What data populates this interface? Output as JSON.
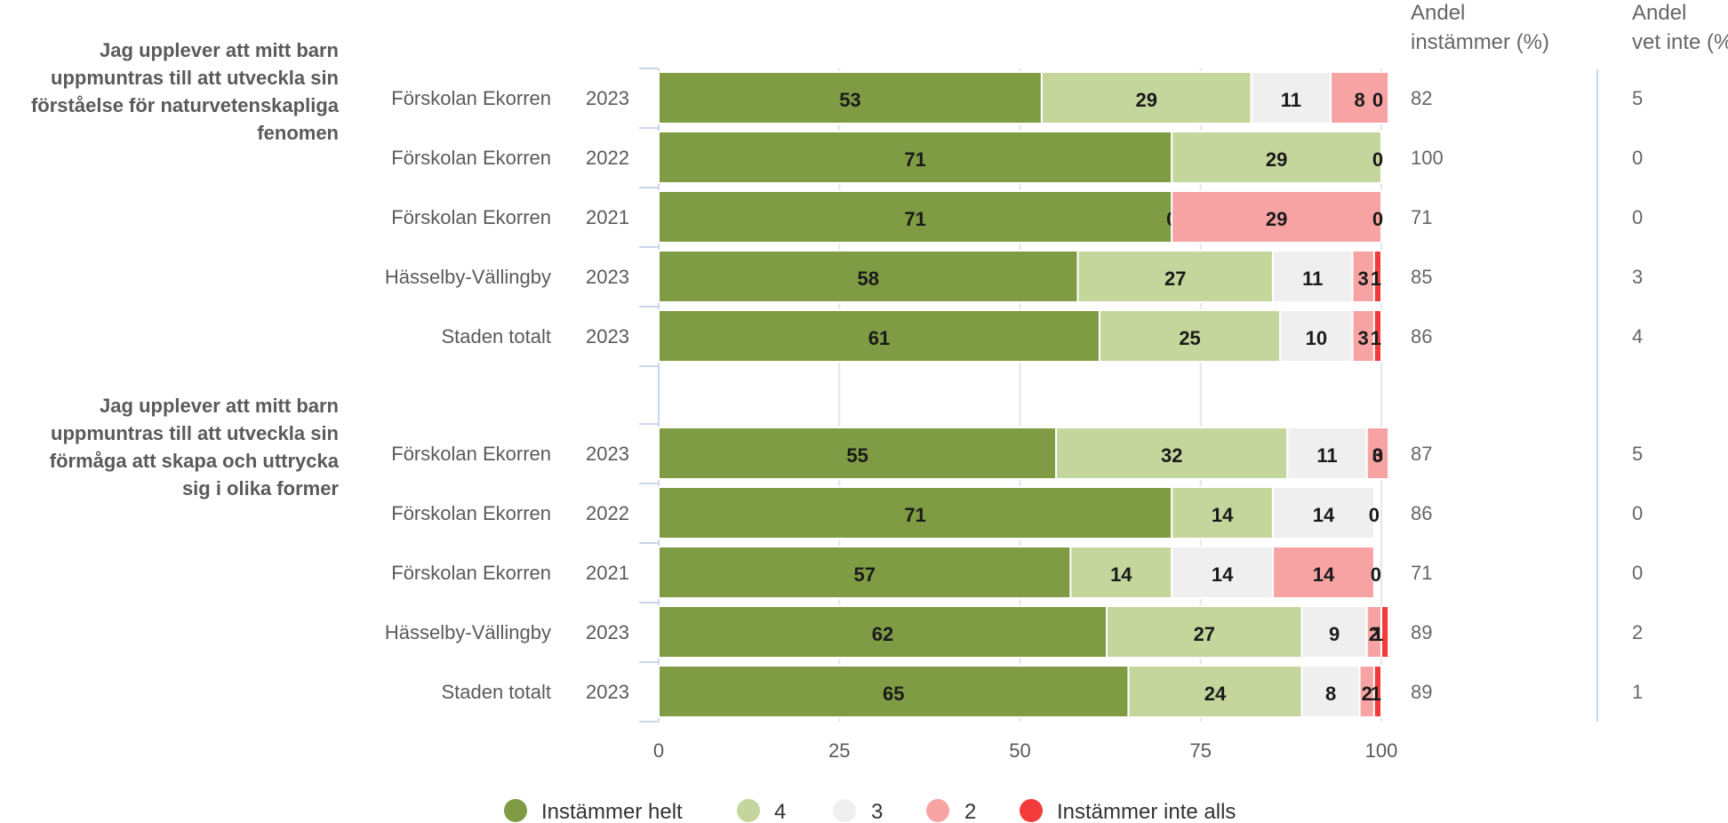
{
  "chart_data": {
    "type": "bar",
    "orientation": "horizontal",
    "stacked": true,
    "xlim": [
      0,
      100
    ],
    "x_ticks": [
      "0",
      "25",
      "50",
      "75",
      "100"
    ],
    "grid": true,
    "legend_position": "bottom",
    "series": [
      {
        "name": "Instämmer helt",
        "color": "#7f9c44"
      },
      {
        "name": "4",
        "color": "#c4d69b"
      },
      {
        "name": "3",
        "color": "#efefef"
      },
      {
        "name": "2",
        "color": "#f8a3a3"
      },
      {
        "name": "Instämmer inte alls",
        "color": "#f23b3b"
      }
    ],
    "side_columns": [
      {
        "header": [
          "Andel",
          "instämmer (%)"
        ]
      },
      {
        "header": [
          "Andel",
          "vet inte (%)"
        ]
      }
    ],
    "groups": [
      {
        "question": [
          "Jag upplever att mitt barn",
          "uppmuntras till att utveckla sin",
          "förståelse för naturvetenskapliga",
          "fenomen"
        ],
        "rows": [
          {
            "name": "Förskolan Ekorren",
            "year": "2023",
            "values": [
              53,
              29,
              11,
              8,
              0
            ],
            "andel_instammer": "82",
            "andel_vet_inte": "5"
          },
          {
            "name": "Förskolan Ekorren",
            "year": "2022",
            "values": [
              71,
              29,
              0,
              0,
              0
            ],
            "labels": [
              "71",
              "29",
              "",
              "",
              "0"
            ],
            "andel_instammer": "100",
            "andel_vet_inte": "0"
          },
          {
            "name": "Förskolan Ekorren",
            "year": "2021",
            "values": [
              71,
              0,
              0,
              29,
              0
            ],
            "labels": [
              "71",
              "0",
              "",
              "29",
              "0"
            ],
            "andel_instammer": "71",
            "andel_vet_inte": "0"
          },
          {
            "name": "Hässelby-Vällingby",
            "year": "2023",
            "values": [
              58,
              27,
              11,
              3,
              1
            ],
            "andel_instammer": "85",
            "andel_vet_inte": "3"
          },
          {
            "name": "Staden totalt",
            "year": "2023",
            "values": [
              61,
              25,
              10,
              3,
              1
            ],
            "andel_instammer": "86",
            "andel_vet_inte": "4"
          }
        ]
      },
      {
        "question": [
          "Jag upplever att mitt barn",
          "uppmuntras till att utveckla sin",
          "förmåga att skapa och uttrycka",
          "sig i olika former"
        ],
        "rows": [
          {
            "name": "Förskolan Ekorren",
            "year": "2023",
            "values": [
              55,
              32,
              11,
              3,
              0
            ],
            "andel_instammer": "87",
            "andel_vet_inte": "5"
          },
          {
            "name": "Förskolan Ekorren",
            "year": "2022",
            "values": [
              71,
              14,
              14,
              0,
              0
            ],
            "labels": [
              "71",
              "14",
              "14",
              "0",
              ""
            ],
            "andel_instammer": "86",
            "andel_vet_inte": "0"
          },
          {
            "name": "Förskolan Ekorren",
            "year": "2021",
            "values": [
              57,
              14,
              14,
              14,
              0
            ],
            "andel_instammer": "71",
            "andel_vet_inte": "0"
          },
          {
            "name": "Hässelby-Vällingby",
            "year": "2023",
            "values": [
              62,
              27,
              9,
              2,
              1
            ],
            "andel_instammer": "89",
            "andel_vet_inte": "2"
          },
          {
            "name": "Staden totalt",
            "year": "2023",
            "values": [
              65,
              24,
              8,
              2,
              1
            ],
            "andel_instammer": "89",
            "andel_vet_inte": "1"
          }
        ]
      }
    ]
  }
}
